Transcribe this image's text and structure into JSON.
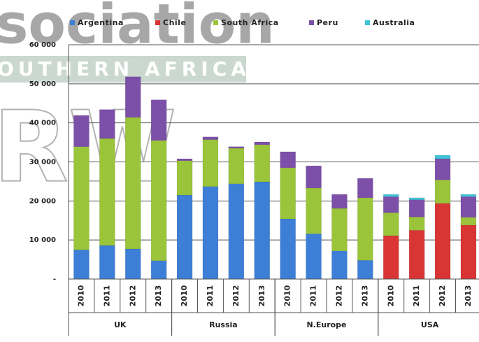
{
  "watermark": {
    "top": "sociation",
    "band": "OUTHERN AFRICA",
    "letters": "RW"
  },
  "chart_data": {
    "type": "stacked_bar",
    "groups": [
      {
        "name": "UK",
        "categories": [
          "2010",
          "2011",
          "2012",
          "2013"
        ]
      },
      {
        "name": "Russia",
        "categories": [
          "2010",
          "2011",
          "2012",
          "2013"
        ]
      },
      {
        "name": "N.Europe",
        "categories": [
          "2010",
          "2011",
          "2012",
          "2013"
        ]
      },
      {
        "name": "USA",
        "categories": [
          "2010",
          "2011",
          "2012",
          "2013"
        ]
      }
    ],
    "series": [
      {
        "name": "Argentina",
        "color": "#3d7fd6",
        "values": [
          7500,
          8600,
          7700,
          4700,
          21500,
          23700,
          24400,
          24900,
          15400,
          11600,
          7200,
          4800,
          0,
          0,
          0,
          0
        ]
      },
      {
        "name": "Chile",
        "color": "#d93535",
        "values": [
          0,
          0,
          0,
          0,
          0,
          0,
          0,
          0,
          0,
          0,
          0,
          0,
          11100,
          12500,
          19400,
          13800
        ]
      },
      {
        "name": "South Africa",
        "color": "#9ac43a",
        "values": [
          26400,
          27400,
          33700,
          30800,
          8800,
          12000,
          9100,
          9500,
          13100,
          11700,
          10900,
          16000,
          5900,
          3400,
          6000,
          2000
        ]
      },
      {
        "name": "Peru",
        "color": "#7c4fa8",
        "values": [
          8000,
          7400,
          10400,
          10400,
          500,
          700,
          400,
          700,
          4100,
          5700,
          3600,
          5000,
          4100,
          4400,
          5400,
          5300
        ]
      },
      {
        "name": "Australia",
        "color": "#3ec3d8",
        "values": [
          0,
          0,
          0,
          0,
          0,
          0,
          0,
          0,
          0,
          0,
          0,
          0,
          600,
          500,
          900,
          600
        ]
      }
    ],
    "ylim": [
      0,
      60000
    ],
    "yticks": [
      {
        "value": 0,
        "label": "-"
      },
      {
        "value": 10000,
        "label": "10 000"
      },
      {
        "value": 20000,
        "label": "20 000"
      },
      {
        "value": 30000,
        "label": "30 000"
      },
      {
        "value": 40000,
        "label": "40 000"
      },
      {
        "value": 50000,
        "label": "50 000"
      },
      {
        "value": 60000,
        "label": "60 000"
      }
    ],
    "grid": true,
    "legend": "top"
  }
}
